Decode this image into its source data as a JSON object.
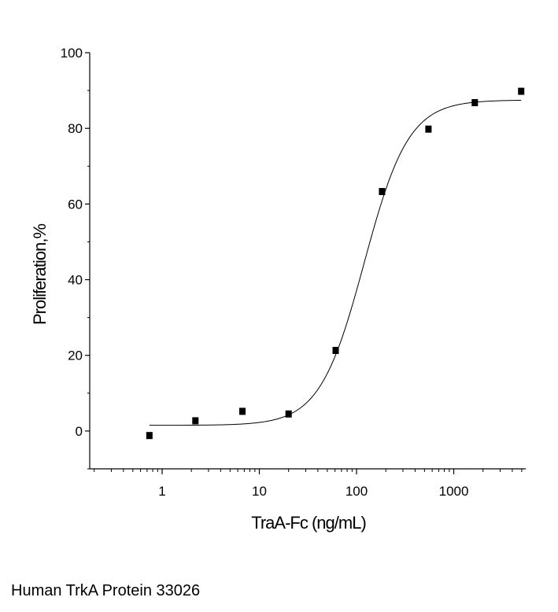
{
  "chart_data": {
    "type": "scatter",
    "xlabel": "TraA-Fc (ng/mL)",
    "ylabel": "Proliferation,%",
    "xscale": "log",
    "xlim": [
      0.18,
      5500
    ],
    "ylim": [
      -10,
      100
    ],
    "xticks": [
      {
        "value": 1,
        "label": "1"
      },
      {
        "value": 10,
        "label": "10"
      },
      {
        "value": 100,
        "label": "100"
      },
      {
        "value": 1000,
        "label": "1000"
      }
    ],
    "yticks": [
      {
        "value": 0,
        "label": "0"
      },
      {
        "value": 20,
        "label": "20"
      },
      {
        "value": 40,
        "label": "40"
      },
      {
        "value": 60,
        "label": "60"
      },
      {
        "value": 80,
        "label": "80"
      },
      {
        "value": 100,
        "label": "100"
      }
    ],
    "grid": false,
    "series": [
      {
        "x": [
          0.74,
          2.2,
          6.7,
          20,
          61,
          183,
          549,
          1646,
          4938
        ],
        "y": [
          -1.2,
          2.7,
          5.2,
          4.5,
          21.3,
          63.3,
          79.8,
          86.8,
          89.8
        ],
        "marker": "square",
        "color": "#000000"
      }
    ],
    "fit_curve": {
      "model": "4PL",
      "bottom": 1.5,
      "top": 87.5,
      "ec50": 120,
      "hill": 1.9,
      "color": "#000000"
    }
  },
  "caption": "Human TrkA Protein 33026"
}
